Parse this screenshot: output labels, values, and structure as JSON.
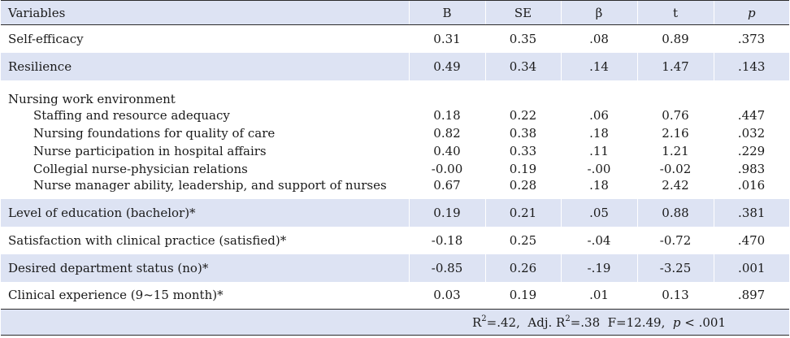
{
  "headers": {
    "variables": "Variables",
    "b": "B",
    "se": "SE",
    "beta": "β",
    "t": "t",
    "p": "p"
  },
  "rows": {
    "self_efficacy": {
      "label": "Self-efficacy",
      "b": "0.31",
      "se": "0.35",
      "beta": ".08",
      "t": "0.89",
      "p": ".373"
    },
    "resilience": {
      "label": "Resilience",
      "b": "0.49",
      "se": "0.34",
      "beta": ".14",
      "t": "1.47",
      "p": ".143"
    },
    "nwe_title": "Nursing work environment",
    "nwe": [
      {
        "label": "Staffing and resource adequacy",
        "b": "0.18",
        "se": "0.22",
        "beta": ".06",
        "t": "0.76",
        "p": ".447"
      },
      {
        "label": "Nursing foundations for quality of care",
        "b": "0.82",
        "se": "0.38",
        "beta": ".18",
        "t": "2.16",
        "p": ".032"
      },
      {
        "label": "Nurse participation in hospital affairs",
        "b": "0.40",
        "se": "0.33",
        "beta": ".11",
        "t": "1.21",
        "p": ".229"
      },
      {
        "label": "Collegial nurse-physician relations",
        "b": "-0.00",
        "se": "0.19",
        "beta": "-.00",
        "t": "-0.02",
        "p": ".983"
      },
      {
        "label": "Nurse manager ability, leadership, and support of nurses",
        "b": "0.67",
        "se": "0.28",
        "beta": ".18",
        "t": "2.42",
        "p": ".016"
      }
    ],
    "education": {
      "label": "Level of education (bachelor)*",
      "b": "0.19",
      "se": "0.21",
      "beta": ".05",
      "t": "0.88",
      "p": ".381"
    },
    "satisfaction": {
      "label": "Satisfaction with clinical practice (satisfied)*",
      "b": "-0.18",
      "se": "0.25",
      "beta": "-.04",
      "t": "-0.72",
      "p": ".470"
    },
    "department": {
      "label": "Desired department status (no)*",
      "b": "-0.85",
      "se": "0.26",
      "beta": "-.19",
      "t": "-3.25",
      "p": ".001"
    },
    "experience": {
      "label": "Clinical experience (9~15 month)*",
      "b": "0.03",
      "se": "0.19",
      "beta": ".01",
      "t": "0.13",
      "p": ".897"
    }
  },
  "footer": {
    "r2_prefix": "R",
    "r2_sup": "2",
    "r2_value": "=.42,  Adj. R",
    "adj_sup": "2",
    "adj_value": "=.38  F=12.49,  ",
    "p_label": "p",
    "p_value": " < .001"
  }
}
